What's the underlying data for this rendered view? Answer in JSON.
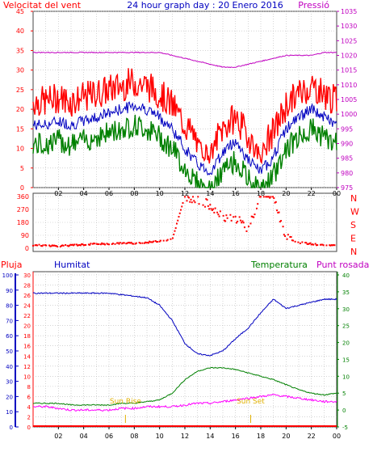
{
  "header": {
    "title": "24 hour graph day : 20 Enero 2016",
    "left_label": "Velocitat del vent",
    "right_label": "Pressió"
  },
  "wind_panel": {
    "left_ticks": [
      "0",
      "5",
      "10",
      "15",
      "20",
      "25",
      "30",
      "35",
      "40",
      "45"
    ],
    "right_ticks": [
      "975",
      "980",
      "985",
      "990",
      "995",
      "1000",
      "1005",
      "1010",
      "1015",
      "1020",
      "1025",
      "1030",
      "1035"
    ]
  },
  "direction_panel": {
    "left_ticks": [
      "0",
      "90",
      "180",
      "270",
      "360"
    ],
    "right_labels": [
      "N",
      "W",
      "S",
      "E",
      "N"
    ]
  },
  "bottom_panel": {
    "label_rain": "Pluja",
    "label_humidity": "Humitat",
    "label_temperature": "Temperatura",
    "label_dewpoint": "Punt rosada",
    "humidity_ticks": [
      "0",
      "10",
      "20",
      "30",
      "40",
      "50",
      "60",
      "70",
      "80",
      "90",
      "100"
    ],
    "rain_ticks": [
      "0",
      "2",
      "4",
      "6",
      "8",
      "10",
      "12",
      "14",
      "16",
      "18",
      "20",
      "22",
      "24",
      "26",
      "28",
      "30"
    ],
    "temp_ticks": [
      "-5",
      "0",
      "5",
      "10",
      "15",
      "20",
      "25",
      "30",
      "35",
      "40"
    ],
    "sun_rise": "Sun Rise",
    "sun_set": "Sun Set"
  },
  "x_ticks": [
    "02",
    "04",
    "06",
    "08",
    "10",
    "12",
    "14",
    "16",
    "18",
    "20",
    "22",
    "00"
  ],
  "colors": {
    "gust": "#ff0000",
    "wind_avg": "#0000c0",
    "wind_min": "#008000",
    "pressure": "#c000c0",
    "direction": "#ff0000",
    "humidity": "#0000c0",
    "temperature": "#008000",
    "dewpoint": "#ff00ff",
    "rain": "#ff0000",
    "sun": "#ffcc00",
    "grid": "#bbbbbb"
  },
  "chart_data": [
    {
      "type": "line",
      "title": "24 hour graph day : 20 Enero 2016",
      "x_hours": [
        1,
        2,
        3,
        4,
        5,
        6,
        7,
        8,
        9,
        10,
        11,
        12,
        13,
        14,
        15,
        16,
        17,
        18,
        19,
        20,
        21,
        22,
        23,
        24
      ],
      "x_tick_labels": [
        "02",
        "04",
        "06",
        "08",
        "10",
        "12",
        "14",
        "16",
        "18",
        "20",
        "22",
        "00"
      ],
      "ylim_left": [
        0,
        45
      ],
      "ylim_right": [
        975,
        1035
      ],
      "series": [
        {
          "name": "Velocitat del vent",
          "axis": "left",
          "values": [
            16,
            17,
            16,
            17,
            18,
            19,
            20,
            21,
            20,
            18,
            15,
            10,
            6,
            4,
            9,
            12,
            7,
            4,
            8,
            15,
            18,
            20,
            18,
            16
          ]
        },
        {
          "name": "Pressió",
          "axis": "right",
          "values": [
            1021,
            1021,
            1021,
            1021,
            1021,
            1021,
            1021,
            1021,
            1021,
            1021,
            1020,
            1019,
            1018,
            1017,
            1016,
            1016,
            1017,
            1018,
            1019,
            1020,
            1020,
            1020,
            1021,
            1021
          ]
        }
      ]
    },
    {
      "type": "scatter",
      "x_hours": [
        1,
        2,
        3,
        4,
        5,
        6,
        7,
        8,
        9,
        10,
        11,
        12,
        13,
        14,
        15,
        16,
        17,
        18,
        19,
        20,
        21,
        22,
        23,
        24
      ],
      "ylim": [
        0,
        360
      ],
      "series": [
        {
          "name": "direction",
          "values": [
            20,
            15,
            20,
            25,
            30,
            30,
            35,
            35,
            40,
            50,
            60,
            360,
            340,
            300,
            220,
            210,
            140,
            360,
            360,
            70,
            40,
            30,
            20,
            20
          ]
        }
      ]
    },
    {
      "type": "line",
      "x_hours": [
        1,
        2,
        3,
        4,
        5,
        6,
        7,
        8,
        9,
        10,
        11,
        12,
        13,
        14,
        15,
        16,
        17,
        18,
        19,
        20,
        21,
        22,
        23,
        24
      ],
      "ylim_humidity": [
        0,
        100
      ],
      "ylim_rain": [
        0,
        30
      ],
      "ylim_temperature": [
        -5,
        40
      ],
      "series": [
        {
          "name": "Humitat",
          "axis": "humidity",
          "values": [
            88,
            88,
            88,
            88,
            88,
            88,
            87,
            86,
            85,
            80,
            70,
            55,
            48,
            47,
            50,
            58,
            65,
            75,
            84,
            78,
            80,
            82,
            84,
            84
          ]
        },
        {
          "name": "Temperatura",
          "axis": "temperature",
          "values": [
            2,
            2,
            1.5,
            1.5,
            1.5,
            1.5,
            2,
            2,
            2.5,
            3,
            5,
            9,
            11.5,
            12.5,
            12.5,
            12,
            11,
            10,
            9,
            7.5,
            6,
            5,
            4.5,
            5
          ]
        },
        {
          "name": "Punt rosada",
          "axis": "temperature",
          "values": [
            1,
            0.5,
            0,
            0,
            0,
            0,
            0.5,
            0.5,
            1,
            1,
            1,
            1.5,
            2,
            2,
            2.5,
            3,
            3.5,
            4,
            4.5,
            4,
            3.5,
            3,
            2.5,
            2.5
          ]
        },
        {
          "name": "Pluja",
          "axis": "rain",
          "values": [
            0,
            0,
            0,
            0,
            0,
            0,
            0,
            0,
            0,
            0,
            0,
            0,
            0,
            0,
            0,
            0,
            0,
            0,
            0,
            0,
            0,
            0,
            0,
            0
          ]
        }
      ],
      "annotations": [
        {
          "text": "Sun Rise",
          "hour": 7.3
        },
        {
          "text": "Sun Set",
          "hour": 17.2
        }
      ]
    }
  ]
}
